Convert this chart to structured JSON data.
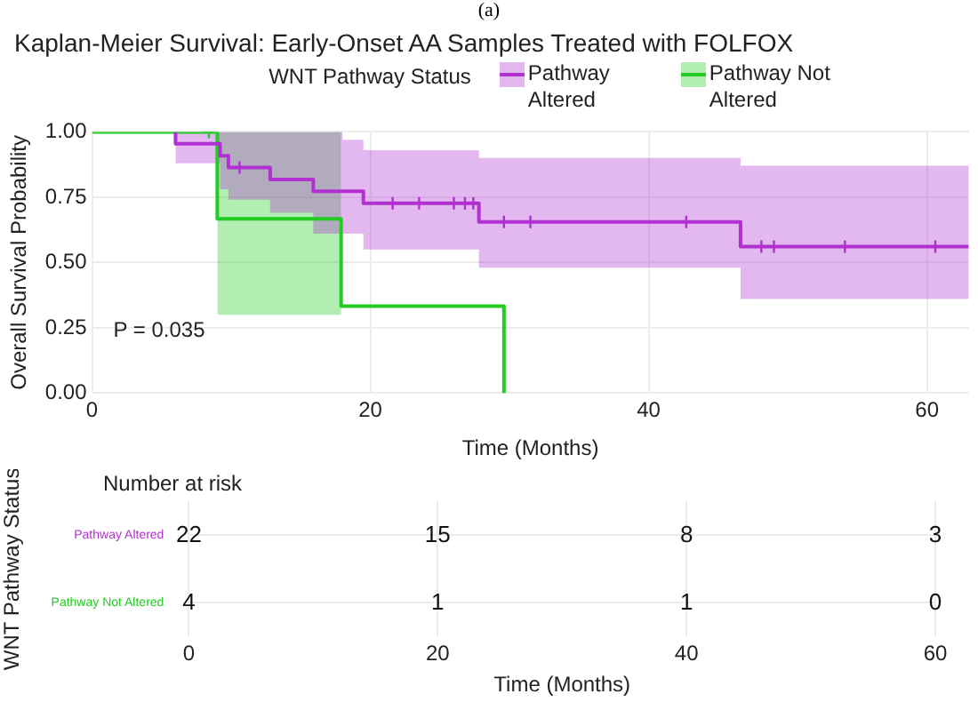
{
  "chart_data": [
    {
      "type": "step",
      "title": "Kaplan-Meier Survival: Early-Onset AA Samples Treated with FOLFOX",
      "xlabel": "Time (Months)",
      "ylabel": "Overall Survival Probability",
      "legend_title": "WNT Pathway Status",
      "legend": "top",
      "grid": true,
      "marker": "none",
      "annotations": [
        "(a)",
        "P = 0.035"
      ],
      "xlim": [
        0,
        63
      ],
      "xticks": [
        0,
        20,
        40,
        60
      ],
      "ylim": [
        0,
        1
      ],
      "yticks": [
        {
          "value": 0,
          "label": "0.00"
        },
        {
          "value": 0.25,
          "label": "0.25"
        },
        {
          "value": 0.5,
          "label": "0.50"
        },
        {
          "value": 0.75,
          "label": "0.75"
        },
        {
          "value": 1,
          "label": "1.00"
        }
      ],
      "series": [
        {
          "name": "Pathway Altered",
          "color": "#b030d0",
          "x": [
            6,
            6,
            9.2,
            9.8,
            12.8,
            15.9,
            18,
            19.5,
            27.8,
            46.6,
            63
          ],
          "values": [
            1,
            0.955,
            0.909,
            0.864,
            0.818,
            0.773,
            0.773,
            0.727,
            0.655,
            0.561,
            0.561
          ],
          "lower": [
            0.88,
            0.88,
            0.78,
            0.74,
            0.69,
            0.61,
            0.61,
            0.55,
            0.48,
            0.36,
            0.36
          ],
          "upper": [
            1,
            1,
            1,
            1,
            1,
            1,
            0.97,
            0.93,
            0.9,
            0.87,
            0.87
          ]
        },
        {
          "name": "Pathway Not Altered",
          "color": "#22cc22",
          "x": [
            0,
            9,
            17.9,
            29.6,
            29.6
          ],
          "values": [
            1,
            0.667,
            0.333,
            0.333,
            0
          ],
          "lower": [
            null,
            0.3,
            0.3,
            null,
            null
          ],
          "upper": [
            null,
            1,
            1,
            null,
            null
          ]
        },
        {
          "type": "scatter",
          "marker": "cross",
          "color": "#b030d0",
          "x": [
            10.6,
            21.6,
            23.5,
            26,
            26.8,
            27.4,
            29.6,
            31.5,
            42.7,
            48.1,
            49,
            54.1,
            60.6
          ],
          "values": [
            0.864,
            0.727,
            0.727,
            0.727,
            0.727,
            0.727,
            0.655,
            0.655,
            0.655,
            0.561,
            0.561,
            0.561,
            0.561
          ]
        },
        {
          "type": "scatter",
          "marker": "cross",
          "color": "#22cc22",
          "x": [
            8.4
          ],
          "values": [
            1
          ]
        }
      ]
    },
    {
      "type": "heatmap",
      "title": "Number at risk",
      "xlabel": "Time (Months)",
      "ylabel": "WNT Pathway Status",
      "grid": true,
      "data_labels": true,
      "categories": [
        "0",
        "20",
        "40",
        "60"
      ],
      "y_categories": [
        "Pathway Altered",
        "Pathway Not Altered"
      ],
      "cells": [
        [
          22,
          15,
          8,
          3
        ],
        [
          4,
          1,
          1,
          0
        ]
      ]
    }
  ]
}
